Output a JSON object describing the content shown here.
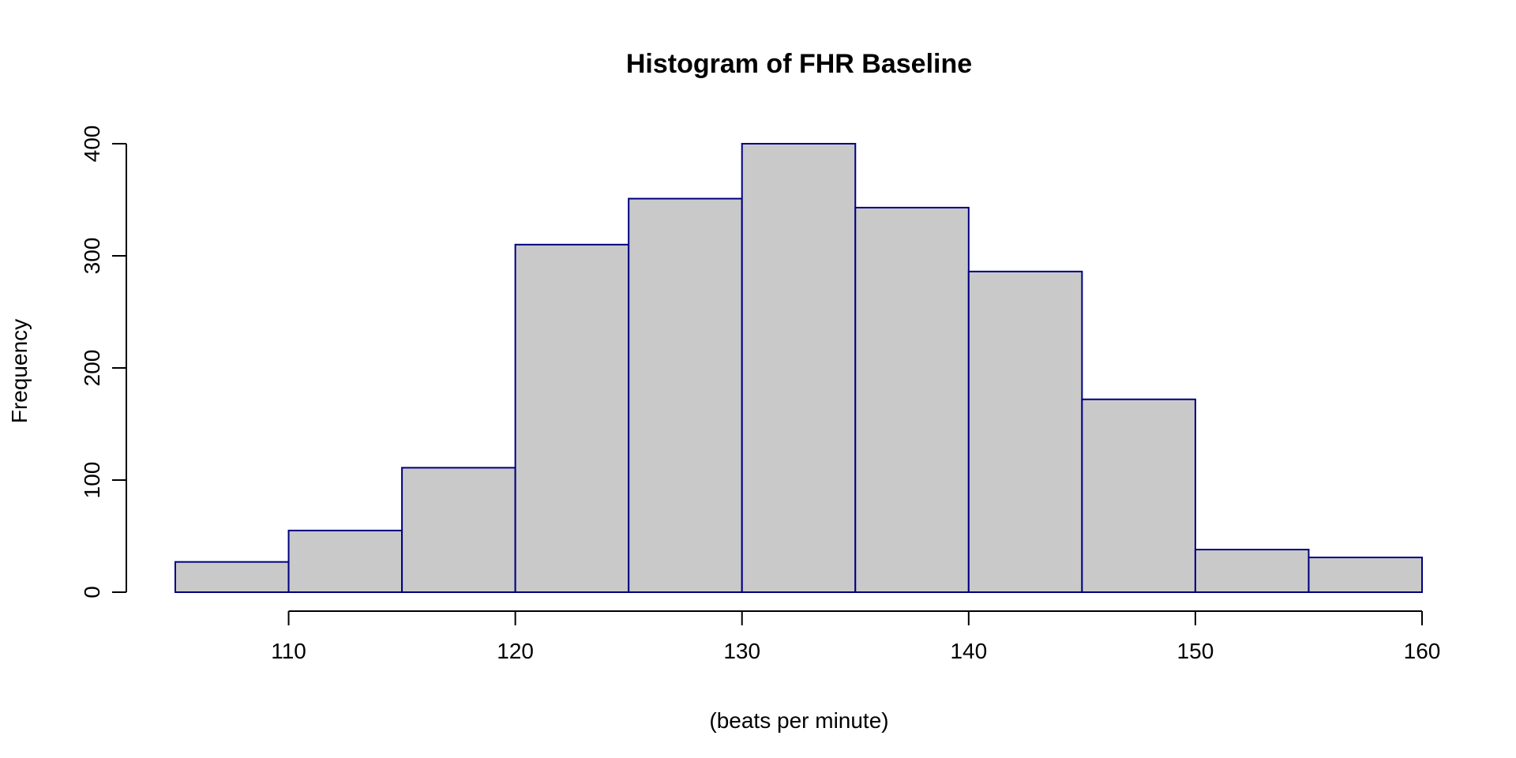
{
  "chart_data": {
    "type": "bar",
    "title": "Histogram of FHR Baseline",
    "xlabel": "(beats per minute)",
    "ylabel": "Frequency",
    "bins": [
      {
        "start": 105,
        "end": 110,
        "count": 27
      },
      {
        "start": 110,
        "end": 115,
        "count": 55
      },
      {
        "start": 115,
        "end": 120,
        "count": 111
      },
      {
        "start": 120,
        "end": 125,
        "count": 310
      },
      {
        "start": 125,
        "end": 130,
        "count": 351
      },
      {
        "start": 130,
        "end": 135,
        "count": 400
      },
      {
        "start": 135,
        "end": 140,
        "count": 343
      },
      {
        "start": 140,
        "end": 145,
        "count": 286
      },
      {
        "start": 145,
        "end": 150,
        "count": 172
      },
      {
        "start": 150,
        "end": 155,
        "count": 38
      },
      {
        "start": 155,
        "end": 160,
        "count": 31
      }
    ],
    "xticks": [
      110,
      120,
      130,
      140,
      150,
      160
    ],
    "yticks": [
      0,
      100,
      200,
      300,
      400
    ],
    "xlim": [
      105,
      160
    ],
    "ylim": [
      0,
      400
    ],
    "bar_fill": "#c9c9c9",
    "bar_stroke": "#000080",
    "grid": false
  }
}
